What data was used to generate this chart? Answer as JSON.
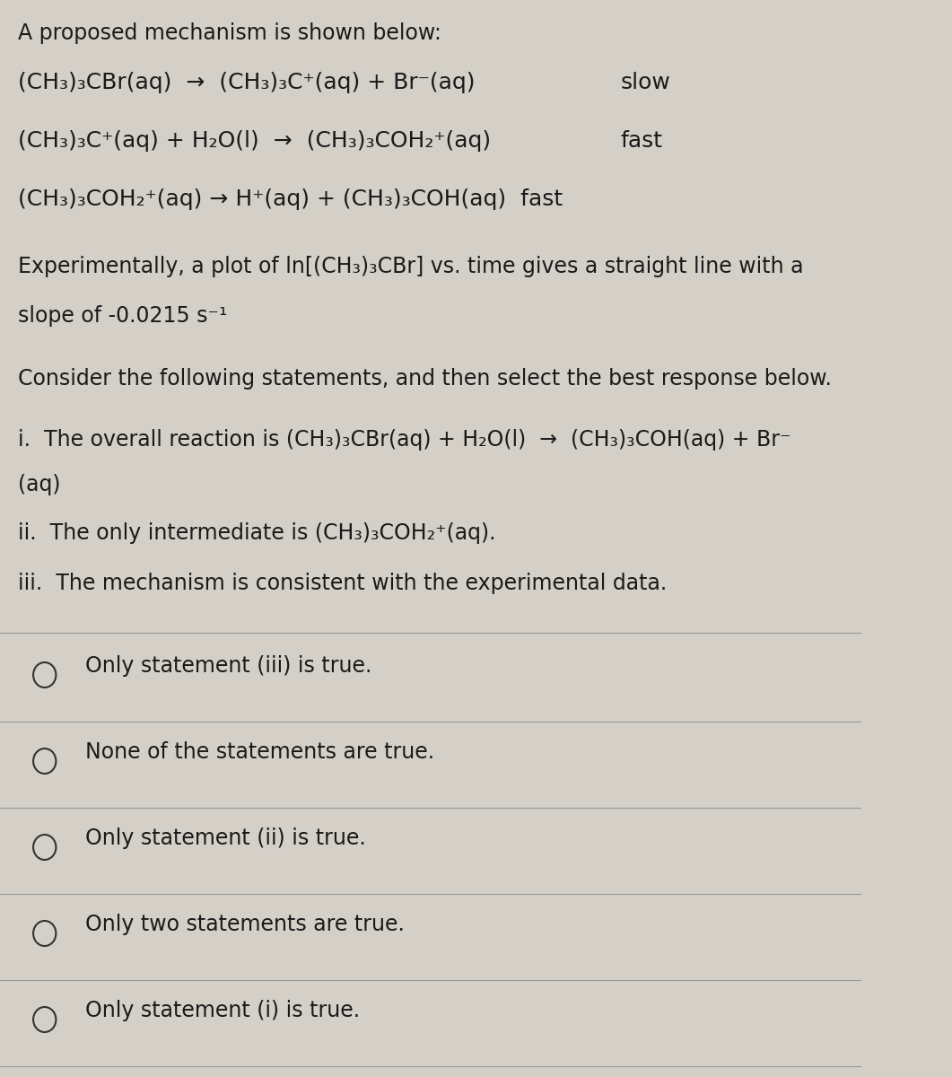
{
  "background_color": "#d4d0c8",
  "title_text": "A proposed mechanism is shown below:",
  "reaction1": "(CH₃)₃CBr(aq)  →  (CH₃)₃C⁺(aq) + Br⁻(aq)",
  "reaction1_rate": "slow",
  "reaction2": "(CH₃)₃C⁺(aq) + H₂O(l)  →  (CH₃)₃COH₂⁺(aq)",
  "reaction2_rate": "fast",
  "reaction3": "(CH₃)₃COH₂⁺(aq) → H⁺(aq) + (CH₃)₃COH(aq)  fast",
  "experimental_text1": "Experimentally, a plot of ln[(CH₃)₃CBr] vs. time gives a straight line with a",
  "experimental_text2": "slope of -0.0215 s⁻¹",
  "consider_text": "Consider the following statements, and then select the best response below.",
  "statement_i": "i.  The overall reaction is (CH₃)₃CBr(aq) + H₂O(l)  →  (CH₃)₃COH(aq) + Br⁻",
  "statement_i_cont": "(aq)",
  "statement_ii": "ii.  The only intermediate is (CH₃)₃COH₂⁺(aq).",
  "statement_iii": "iii.  The mechanism is consistent with the experimental data.",
  "options": [
    "Only statement (iii) is true.",
    "None of the statements are true.",
    "Only statement (ii) is true.",
    "Only two statements are true.",
    "Only statement (i) is true."
  ],
  "font_size_main": 17,
  "font_size_reaction": 18,
  "text_color": "#1a1a1a",
  "line_color": "#999999"
}
